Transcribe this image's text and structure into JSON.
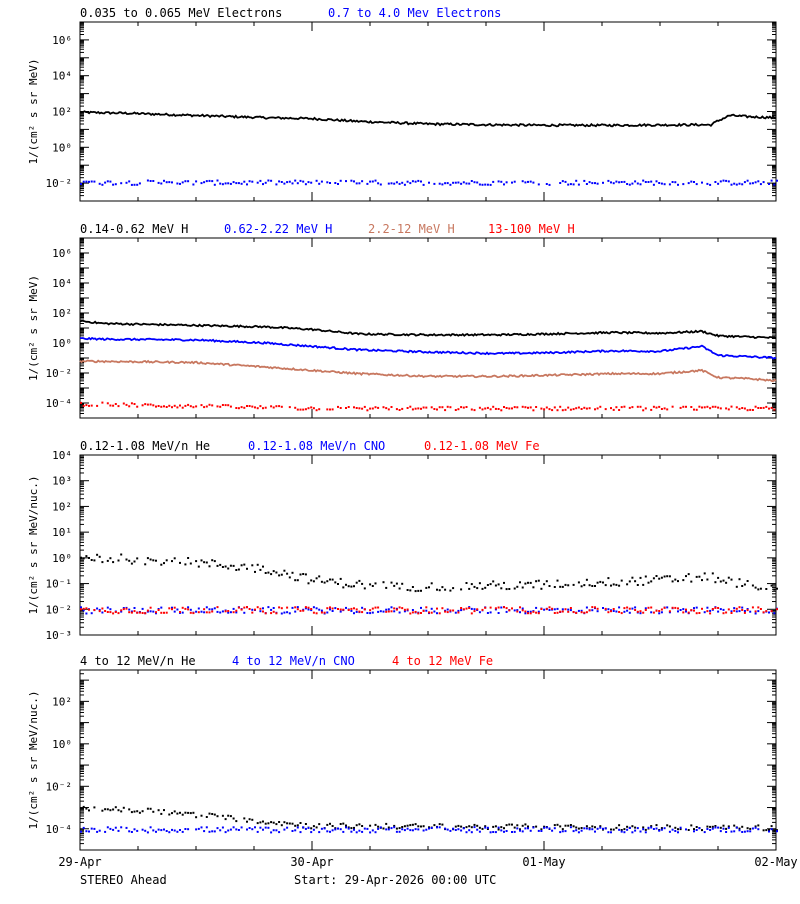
{
  "colors": {
    "black": "#000000",
    "blue": "#0000ff",
    "tan": "#c87860",
    "red": "#ff0000"
  },
  "footer": {
    "left": "STEREO Ahead",
    "center": "Start: 29-Apr-2026 00:00 UTC"
  },
  "chart_data": [
    {
      "type": "line",
      "ylabel": "1/(cm² s sr MeV)",
      "yscale": "log",
      "ylim": [
        0.001,
        10000000
      ],
      "yticks": [
        {
          "v": 1000000,
          "label": "10⁶"
        },
        {
          "v": 10000,
          "label": "10⁴"
        },
        {
          "v": 100,
          "label": "10²"
        },
        {
          "v": 1,
          "label": "10⁰"
        },
        {
          "v": 0.01,
          "label": "10⁻²"
        }
      ],
      "xlim_days": [
        0,
        3
      ],
      "legend": [
        {
          "text": "0.035 to 0.065 MeV Electrons",
          "color": "black"
        },
        {
          "text": "0.7 to 4.0 Mev Electrons",
          "color": "blue"
        }
      ],
      "series": [
        {
          "name": "0.035 to 0.065 MeV Electrons",
          "color": "black",
          "style": "line",
          "x": [
            0,
            0.2,
            0.5,
            0.8,
            1.0,
            1.2,
            1.5,
            1.8,
            2.0,
            2.3,
            2.6,
            2.72,
            2.75,
            2.8,
            2.9,
            3.0
          ],
          "y": [
            90,
            80,
            60,
            45,
            40,
            28,
            20,
            18,
            17,
            17,
            18,
            18,
            30,
            60,
            50,
            45
          ]
        },
        {
          "name": "0.7 to 4.0 Mev Electrons",
          "color": "blue",
          "style": "scatter",
          "x": [
            0,
            3
          ],
          "y": [
            0.012,
            0.012
          ]
        }
      ]
    },
    {
      "type": "line",
      "ylabel": "1/(cm² s sr MeV)",
      "yscale": "log",
      "ylim": [
        1e-05,
        10000000
      ],
      "yticks": [
        {
          "v": 1000000,
          "label": "10⁶"
        },
        {
          "v": 10000,
          "label": "10⁴"
        },
        {
          "v": 100,
          "label": "10²"
        },
        {
          "v": 1,
          "label": "10⁰"
        },
        {
          "v": 0.01,
          "label": "10⁻²"
        },
        {
          "v": 0.0001,
          "label": "10⁻⁴"
        }
      ],
      "xlim_days": [
        0,
        3
      ],
      "legend": [
        {
          "text": "0.14-0.62 MeV H",
          "color": "black"
        },
        {
          "text": "0.62-2.22 MeV H",
          "color": "blue"
        },
        {
          "text": "2.2-12 MeV H",
          "color": "tan"
        },
        {
          "text": "13-100 MeV H",
          "color": "red"
        }
      ],
      "series": [
        {
          "name": "0.14-0.62 MeV H",
          "color": "black",
          "style": "line",
          "x": [
            0,
            0.1,
            0.5,
            0.8,
            1.0,
            1.2,
            1.5,
            1.8,
            2.0,
            2.3,
            2.5,
            2.68,
            2.75,
            2.9,
            3.0
          ],
          "y": [
            30,
            20,
            15,
            12,
            8,
            4,
            3.5,
            3.5,
            4,
            5,
            4.5,
            6,
            3,
            2.5,
            2.2
          ]
        },
        {
          "name": "0.62-2.22 MeV H",
          "color": "blue",
          "style": "line",
          "x": [
            0,
            0.1,
            0.5,
            0.8,
            1.0,
            1.2,
            1.5,
            1.8,
            2.0,
            2.3,
            2.5,
            2.68,
            2.75,
            2.9,
            3.0
          ],
          "y": [
            2,
            1.8,
            1.6,
            1,
            0.6,
            0.35,
            0.25,
            0.2,
            0.22,
            0.3,
            0.28,
            0.6,
            0.15,
            0.12,
            0.1
          ]
        },
        {
          "name": "2.2-12 MeV H",
          "color": "tan",
          "style": "line",
          "x": [
            0,
            0.1,
            0.5,
            0.8,
            1.0,
            1.2,
            1.5,
            1.8,
            2.0,
            2.3,
            2.5,
            2.68,
            2.75,
            2.9,
            3.0
          ],
          "y": [
            0.06,
            0.06,
            0.05,
            0.025,
            0.015,
            0.009,
            0.006,
            0.006,
            0.007,
            0.009,
            0.009,
            0.015,
            0.005,
            0.004,
            0.003
          ]
        },
        {
          "name": "13-100 MeV H",
          "color": "red",
          "style": "scatter",
          "x": [
            0,
            0.3,
            1.0,
            2.0,
            3.0
          ],
          "y": [
            0.0001,
            8e-05,
            5e-05,
            5e-05,
            5e-05
          ]
        }
      ]
    },
    {
      "type": "scatter",
      "ylabel": "1/(cm² s sr MeV/nuc.)",
      "yscale": "log",
      "ylim": [
        0.001,
        10000
      ],
      "yticks": [
        {
          "v": 10000,
          "label": "10⁴"
        },
        {
          "v": 1000,
          "label": "10³"
        },
        {
          "v": 100,
          "label": "10²"
        },
        {
          "v": 10,
          "label": "10¹"
        },
        {
          "v": 1,
          "label": "10⁰"
        },
        {
          "v": 0.1,
          "label": "10⁻¹"
        },
        {
          "v": 0.01,
          "label": "10⁻²"
        },
        {
          "v": 0.001,
          "label": "10⁻³"
        }
      ],
      "xlim_days": [
        0,
        3
      ],
      "legend": [
        {
          "text": "0.12-1.08 MeV/n He",
          "color": "black"
        },
        {
          "text": "0.12-1.08 MeV/n CNO",
          "color": "blue"
        },
        {
          "text": "0.12-1.08 MeV Fe",
          "color": "red"
        }
      ],
      "series": [
        {
          "name": "0.12-1.08 MeV/n He",
          "color": "black",
          "style": "scatter",
          "x": [
            0,
            0.2,
            0.5,
            0.8,
            1.0,
            1.2,
            1.5,
            2.0,
            2.5,
            2.7,
            3.0
          ],
          "y": [
            1.2,
            1.0,
            0.7,
            0.4,
            0.15,
            0.1,
            0.08,
            0.1,
            0.15,
            0.2,
            0.06
          ]
        },
        {
          "name": "0.12-1.08 MeV/n CNO",
          "color": "blue",
          "style": "scatter",
          "x": [
            0,
            3
          ],
          "y": [
            0.01,
            0.01
          ]
        },
        {
          "name": "0.12-1.08 MeV Fe",
          "color": "red",
          "style": "scatter",
          "x": [
            0,
            3
          ],
          "y": [
            0.01,
            0.01
          ]
        }
      ]
    },
    {
      "type": "scatter",
      "ylabel": "1/(cm² s sr MeV/nuc.)",
      "yscale": "log",
      "ylim": [
        1e-05,
        3000
      ],
      "yticks": [
        {
          "v": 100,
          "label": "10²"
        },
        {
          "v": 1,
          "label": "10⁰"
        },
        {
          "v": 0.01,
          "label": "10⁻²"
        },
        {
          "v": 0.0001,
          "label": "10⁻⁴"
        }
      ],
      "xlim_days": [
        0,
        3
      ],
      "xticks": [
        {
          "v": 0,
          "label": "29-Apr"
        },
        {
          "v": 1,
          "label": "30-Apr"
        },
        {
          "v": 2,
          "label": "01-May"
        },
        {
          "v": 3,
          "label": "02-May"
        }
      ],
      "legend": [
        {
          "text": "4 to 12 MeV/n He",
          "color": "black"
        },
        {
          "text": "4 to 12 MeV/n CNO",
          "color": "blue"
        },
        {
          "text": "4 to 12 MeV Fe",
          "color": "red"
        }
      ],
      "series": [
        {
          "name": "4 to 12 MeV/n He",
          "color": "black",
          "style": "scatter",
          "x": [
            0,
            0.3,
            0.6,
            1.0,
            3.0
          ],
          "y": [
            0.001,
            0.0008,
            0.0004,
            0.00015,
            0.00012
          ]
        },
        {
          "name": "4 to 12 MeV/n CNO",
          "color": "blue",
          "style": "scatter",
          "x": [
            0,
            3
          ],
          "y": [
            0.0001,
            0.0001
          ]
        }
      ]
    }
  ]
}
